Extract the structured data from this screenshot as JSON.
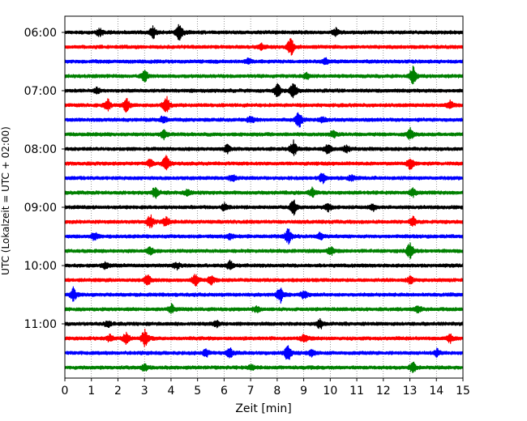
{
  "chart_data": {
    "type": "line",
    "xlabel": "Zeit  [min]",
    "ylabel": "UTC (Lokalzeit = UTC + 02:00)",
    "xlim": [
      0,
      15
    ],
    "x_ticks": [
      "0",
      "1",
      "2",
      "3",
      "4",
      "5",
      "6",
      "7",
      "8",
      "9",
      "10",
      "11",
      "12",
      "13",
      "14",
      "15"
    ],
    "y_tick_labels": [
      "06:00",
      "07:00",
      "08:00",
      "09:00",
      "10:00",
      "11:00"
    ],
    "y_tick_positions_minutes": [
      0,
      60,
      120,
      180,
      240,
      300
    ],
    "grid": "vertical dotted at each minute",
    "trace_interval_minutes": 15,
    "trace_colors": [
      "#000000",
      "#ff0000",
      "#0000ff",
      "#008000"
    ],
    "traces": [
      {
        "start": "06:00",
        "color": "#000000",
        "events": [
          [
            1.3,
            0.4
          ],
          [
            3.3,
            0.6
          ],
          [
            4.3,
            1.0
          ],
          [
            10.2,
            0.35
          ]
        ]
      },
      {
        "start": "06:15",
        "color": "#ff0000",
        "events": [
          [
            7.4,
            0.3
          ],
          [
            8.5,
            1.0
          ]
        ]
      },
      {
        "start": "06:30",
        "color": "#0000ff",
        "events": [
          [
            6.9,
            0.3
          ],
          [
            9.8,
            0.3
          ]
        ]
      },
      {
        "start": "06:45",
        "color": "#008000",
        "events": [
          [
            3.0,
            0.55
          ],
          [
            9.1,
            0.3
          ],
          [
            13.1,
            1.0
          ]
        ]
      },
      {
        "start": "07:00",
        "color": "#000000",
        "events": [
          [
            1.2,
            0.3
          ],
          [
            8.0,
            0.7
          ],
          [
            8.6,
            0.8
          ]
        ]
      },
      {
        "start": "07:15",
        "color": "#ff0000",
        "events": [
          [
            1.6,
            0.55
          ],
          [
            2.3,
            0.8
          ],
          [
            3.8,
            0.95
          ],
          [
            14.5,
            0.45
          ]
        ]
      },
      {
        "start": "07:30",
        "color": "#0000ff",
        "events": [
          [
            3.7,
            0.35
          ],
          [
            7.0,
            0.3
          ],
          [
            8.8,
            0.85
          ],
          [
            9.7,
            0.3
          ]
        ]
      },
      {
        "start": "07:45",
        "color": "#008000",
        "events": [
          [
            3.7,
            0.45
          ],
          [
            10.1,
            0.3
          ],
          [
            13.0,
            0.55
          ]
        ]
      },
      {
        "start": "08:00",
        "color": "#000000",
        "events": [
          [
            6.1,
            0.4
          ],
          [
            8.6,
            0.85
          ],
          [
            9.9,
            0.55
          ],
          [
            10.6,
            0.3
          ]
        ]
      },
      {
        "start": "08:15",
        "color": "#ff0000",
        "events": [
          [
            3.2,
            0.45
          ],
          [
            3.8,
            0.75
          ],
          [
            13.0,
            0.65
          ]
        ]
      },
      {
        "start": "08:30",
        "color": "#0000ff",
        "events": [
          [
            6.3,
            0.35
          ],
          [
            9.7,
            0.5
          ],
          [
            10.8,
            0.3
          ]
        ]
      },
      {
        "start": "08:45",
        "color": "#008000",
        "events": [
          [
            3.4,
            0.6
          ],
          [
            4.6,
            0.35
          ],
          [
            9.3,
            0.45
          ],
          [
            13.1,
            0.4
          ]
        ]
      },
      {
        "start": "09:00",
        "color": "#000000",
        "events": [
          [
            6.0,
            0.35
          ],
          [
            8.6,
            0.8
          ],
          [
            9.9,
            0.45
          ],
          [
            11.6,
            0.3
          ]
        ]
      },
      {
        "start": "09:15",
        "color": "#ff0000",
        "events": [
          [
            3.2,
            0.7
          ],
          [
            3.8,
            0.5
          ],
          [
            13.1,
            0.5
          ]
        ]
      },
      {
        "start": "09:30",
        "color": "#0000ff",
        "events": [
          [
            1.1,
            0.45
          ],
          [
            6.2,
            0.3
          ],
          [
            8.4,
            0.85
          ],
          [
            9.6,
            0.35
          ]
        ]
      },
      {
        "start": "09:45",
        "color": "#008000",
        "events": [
          [
            3.2,
            0.4
          ],
          [
            10.0,
            0.4
          ],
          [
            13.0,
            0.9
          ]
        ]
      },
      {
        "start": "10:00",
        "color": "#000000",
        "events": [
          [
            1.5,
            0.3
          ],
          [
            4.2,
            0.3
          ],
          [
            6.2,
            0.45
          ]
        ]
      },
      {
        "start": "10:15",
        "color": "#ff0000",
        "events": [
          [
            3.1,
            0.55
          ],
          [
            4.9,
            0.6
          ],
          [
            5.5,
            0.5
          ],
          [
            13.0,
            0.35
          ]
        ]
      },
      {
        "start": "10:30",
        "color": "#0000ff",
        "events": [
          [
            0.3,
            0.7
          ],
          [
            8.1,
            0.85
          ],
          [
            9.0,
            0.4
          ]
        ]
      },
      {
        "start": "10:45",
        "color": "#008000",
        "events": [
          [
            4.0,
            0.45
          ],
          [
            7.2,
            0.3
          ],
          [
            13.3,
            0.35
          ]
        ]
      },
      {
        "start": "11:00",
        "color": "#000000",
        "events": [
          [
            1.6,
            0.3
          ],
          [
            5.7,
            0.35
          ],
          [
            9.6,
            0.55
          ]
        ]
      },
      {
        "start": "11:15",
        "color": "#ff0000",
        "events": [
          [
            1.7,
            0.4
          ],
          [
            2.3,
            0.6
          ],
          [
            3.0,
            0.9
          ],
          [
            9.0,
            0.4
          ],
          [
            14.5,
            0.45
          ]
        ]
      },
      {
        "start": "11:30",
        "color": "#0000ff",
        "events": [
          [
            5.3,
            0.35
          ],
          [
            6.2,
            0.5
          ],
          [
            8.4,
            0.85
          ],
          [
            9.3,
            0.4
          ],
          [
            14.0,
            0.4
          ]
        ]
      },
      {
        "start": "11:45",
        "color": "#008000",
        "events": [
          [
            3.0,
            0.35
          ],
          [
            7.0,
            0.25
          ],
          [
            13.1,
            0.5
          ]
        ]
      }
    ]
  }
}
